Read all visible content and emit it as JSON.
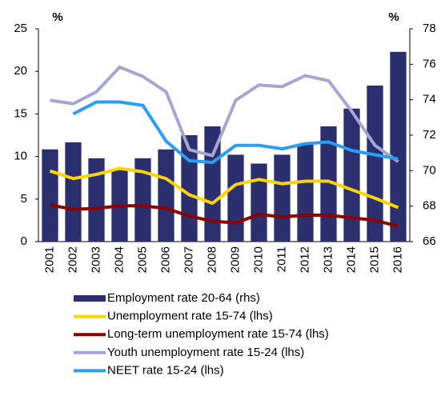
{
  "chart_data": {
    "type": "bar-line",
    "y_unit": "%",
    "y2_unit": "%",
    "categories": [
      "2001",
      "2002",
      "2003",
      "2004",
      "2005",
      "2006",
      "2007",
      "2008",
      "2009",
      "2010",
      "2011",
      "2012",
      "2013",
      "2014",
      "2015",
      "2016"
    ],
    "ylim": [
      0,
      25
    ],
    "yticks": [
      0,
      5,
      10,
      15,
      20,
      25
    ],
    "y2lim": [
      66,
      78
    ],
    "y2ticks": [
      66,
      68,
      70,
      72,
      74,
      76,
      78
    ],
    "series": [
      {
        "name": "Employment rate 20-64 (rhs)",
        "type": "bar",
        "axis": "y2",
        "color": "#2b2f6e",
        "values": [
          71.2,
          71.6,
          70.7,
          70.1,
          70.7,
          71.2,
          72.0,
          72.5,
          70.9,
          70.4,
          70.9,
          71.5,
          72.5,
          73.5,
          74.8,
          76.7
        ]
      },
      {
        "name": "Unemployment rate 15-74 (lhs)",
        "type": "line",
        "color": "#ffd400",
        "values": [
          8.3,
          7.4,
          7.9,
          8.6,
          8.2,
          7.4,
          5.5,
          4.5,
          6.7,
          7.3,
          6.8,
          7.1,
          7.1,
          6.1,
          5.1,
          4.0
        ]
      },
      {
        "name": "Long-term unemployment rate 15-74 (lhs)",
        "type": "line",
        "color": "#8b0000",
        "values": [
          4.3,
          3.8,
          3.9,
          4.2,
          4.2,
          3.9,
          3.0,
          2.4,
          2.2,
          3.2,
          2.9,
          3.1,
          3.1,
          2.8,
          2.5,
          1.8
        ]
      },
      {
        "name": "Youth unemployment rate 15-24 (lhs)",
        "type": "line",
        "color": "#a6a6d2",
        "values": [
          16.6,
          16.2,
          17.6,
          20.5,
          19.4,
          17.6,
          10.8,
          10.1,
          16.6,
          18.4,
          18.2,
          19.5,
          18.9,
          15.3,
          11.3,
          9.4
        ]
      },
      {
        "name": "NEET rate 15-24 (lhs)",
        "type": "line",
        "color": "#2a9df4",
        "values": [
          null,
          15.0,
          16.4,
          16.4,
          16.0,
          11.8,
          9.5,
          9.3,
          11.3,
          11.3,
          10.9,
          11.5,
          11.7,
          10.7,
          10.2,
          9.7
        ]
      }
    ]
  }
}
